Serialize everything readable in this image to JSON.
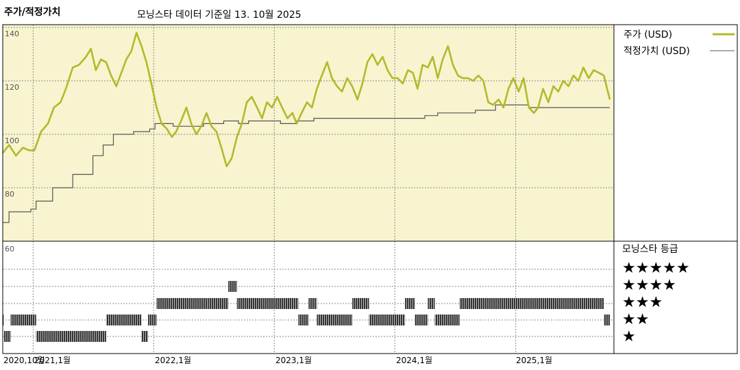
{
  "header": {
    "panel_title": "주가/적정가치",
    "subtitle": "모닝스타 데이터 기준일 13. 10월 2025"
  },
  "legend": {
    "price_label": "주가 (USD)",
    "fair_value_label": "적정가치 (USD)",
    "rating_title": "모닝스타 등급",
    "stars": [
      "★★★★★",
      "★★★★",
      "★★★",
      "★★",
      "★"
    ]
  },
  "colors": {
    "price_line": "#b5b82a",
    "fair_value_line": "#555555",
    "upper_bg": "#f7f4cf",
    "rating_bar": "#333333",
    "grid": "#888888"
  },
  "chart_data": [
    {
      "type": "line",
      "y_ticks": [
        "140",
        "120",
        "100",
        "80",
        "60"
      ],
      "ylim": [
        60,
        142
      ],
      "x_ticks": [
        "2020,10월",
        "2021,1월",
        "2022,1월",
        "2023,1월",
        "2024,1월",
        "2025,1월"
      ],
      "xlim": [
        "2020-10-01",
        "2025-10-13"
      ],
      "series": [
        {
          "name": "주가 (USD)",
          "points": [
            [
              "2020-10-01",
              93
            ],
            [
              "2020-10-20",
              96
            ],
            [
              "2020-11-10",
              92
            ],
            [
              "2020-12-01",
              95
            ],
            [
              "2020-12-20",
              94
            ],
            [
              "2021-01-05",
              94
            ],
            [
              "2021-01-25",
              101
            ],
            [
              "2021-02-15",
              104
            ],
            [
              "2021-03-05",
              110
            ],
            [
              "2021-03-25",
              112
            ],
            [
              "2021-04-10",
              117
            ],
            [
              "2021-05-01",
              125
            ],
            [
              "2021-05-20",
              126
            ],
            [
              "2021-06-10",
              129
            ],
            [
              "2021-06-25",
              132
            ],
            [
              "2021-07-10",
              124
            ],
            [
              "2021-07-25",
              128
            ],
            [
              "2021-08-10",
              127
            ],
            [
              "2021-08-25",
              122
            ],
            [
              "2021-09-10",
              118
            ],
            [
              "2021-09-25",
              123
            ],
            [
              "2021-10-10",
              128
            ],
            [
              "2021-10-25",
              131
            ],
            [
              "2021-11-10",
              138
            ],
            [
              "2021-11-25",
              133
            ],
            [
              "2021-12-10",
              127
            ],
            [
              "2021-12-25",
              119
            ],
            [
              "2022-01-10",
              110
            ],
            [
              "2022-01-25",
              104
            ],
            [
              "2022-02-10",
              102
            ],
            [
              "2022-02-25",
              99
            ],
            [
              "2022-03-10",
              101
            ],
            [
              "2022-03-25",
              105
            ],
            [
              "2022-04-10",
              110
            ],
            [
              "2022-04-25",
              104
            ],
            [
              "2022-05-10",
              100
            ],
            [
              "2022-05-25",
              103
            ],
            [
              "2022-06-10",
              108
            ],
            [
              "2022-06-25",
              103
            ],
            [
              "2022-07-10",
              101
            ],
            [
              "2022-07-25",
              95
            ],
            [
              "2022-08-10",
              88
            ],
            [
              "2022-08-25",
              91
            ],
            [
              "2022-09-10",
              99
            ],
            [
              "2022-09-25",
              104
            ],
            [
              "2022-10-10",
              112
            ],
            [
              "2022-10-25",
              114
            ],
            [
              "2022-11-10",
              110
            ],
            [
              "2022-11-25",
              106
            ],
            [
              "2022-12-10",
              112
            ],
            [
              "2022-12-25",
              110
            ],
            [
              "2023-01-10",
              114
            ],
            [
              "2023-01-25",
              110
            ],
            [
              "2023-02-10",
              106
            ],
            [
              "2023-02-25",
              108
            ],
            [
              "2023-03-10",
              104
            ],
            [
              "2023-03-25",
              108
            ],
            [
              "2023-04-10",
              112
            ],
            [
              "2023-04-25",
              110
            ],
            [
              "2023-05-10",
              117
            ],
            [
              "2023-05-25",
              122
            ],
            [
              "2023-06-10",
              127
            ],
            [
              "2023-06-25",
              121
            ],
            [
              "2023-07-10",
              118
            ],
            [
              "2023-07-25",
              116
            ],
            [
              "2023-08-10",
              121
            ],
            [
              "2023-08-25",
              118
            ],
            [
              "2023-09-10",
              113
            ],
            [
              "2023-09-25",
              119
            ],
            [
              "2023-10-10",
              127
            ],
            [
              "2023-10-25",
              130
            ],
            [
              "2023-11-10",
              126
            ],
            [
              "2023-11-25",
              129
            ],
            [
              "2023-12-10",
              124
            ],
            [
              "2023-12-25",
              121
            ],
            [
              "2024-01-10",
              121
            ],
            [
              "2024-01-25",
              119
            ],
            [
              "2024-02-10",
              124
            ],
            [
              "2024-02-25",
              123
            ],
            [
              "2024-03-10",
              117
            ],
            [
              "2024-03-25",
              126
            ],
            [
              "2024-04-10",
              125
            ],
            [
              "2024-04-25",
              129
            ],
            [
              "2024-05-10",
              121
            ],
            [
              "2024-05-25",
              128
            ],
            [
              "2024-06-10",
              133
            ],
            [
              "2024-06-25",
              126
            ],
            [
              "2024-07-10",
              122
            ],
            [
              "2024-07-25",
              121
            ],
            [
              "2024-08-10",
              121
            ],
            [
              "2024-08-25",
              120
            ],
            [
              "2024-09-10",
              122
            ],
            [
              "2024-09-25",
              120
            ],
            [
              "2024-10-10",
              112
            ],
            [
              "2024-10-25",
              111
            ],
            [
              "2024-11-10",
              113
            ],
            [
              "2024-11-25",
              110
            ],
            [
              "2024-12-10",
              117
            ],
            [
              "2024-12-25",
              121
            ],
            [
              "2025-01-10",
              116
            ],
            [
              "2025-01-25",
              121
            ],
            [
              "2025-02-10",
              110
            ],
            [
              "2025-02-25",
              108
            ],
            [
              "2025-03-10",
              110
            ],
            [
              "2025-03-25",
              117
            ],
            [
              "2025-04-10",
              112
            ],
            [
              "2025-04-25",
              118
            ],
            [
              "2025-05-10",
              116
            ],
            [
              "2025-05-25",
              120
            ],
            [
              "2025-06-10",
              118
            ],
            [
              "2025-06-25",
              122
            ],
            [
              "2025-07-10",
              120
            ],
            [
              "2025-07-25",
              125
            ],
            [
              "2025-08-10",
              121
            ],
            [
              "2025-08-25",
              124
            ],
            [
              "2025-09-10",
              123
            ],
            [
              "2025-09-25",
              122
            ],
            [
              "2025-10-13",
              113
            ]
          ]
        },
        {
          "name": "적정가치 (USD)",
          "points": [
            [
              "2020-10-01",
              67
            ],
            [
              "2020-10-20",
              71
            ],
            [
              "2020-12-25",
              72
            ],
            [
              "2021-01-10",
              75
            ],
            [
              "2021-03-01",
              80
            ],
            [
              "2021-05-01",
              85
            ],
            [
              "2021-07-01",
              92
            ],
            [
              "2021-08-01",
              96
            ],
            [
              "2021-09-01",
              100
            ],
            [
              "2021-11-01",
              101
            ],
            [
              "2021-12-20",
              102
            ],
            [
              "2022-01-05",
              104
            ],
            [
              "2022-03-01",
              103
            ],
            [
              "2022-06-01",
              104
            ],
            [
              "2022-08-01",
              105
            ],
            [
              "2022-09-15",
              104
            ],
            [
              "2022-10-15",
              105
            ],
            [
              "2023-01-20",
              104
            ],
            [
              "2023-03-10",
              105
            ],
            [
              "2023-05-01",
              106
            ],
            [
              "2023-10-01",
              106
            ],
            [
              "2024-04-01",
              107
            ],
            [
              "2024-05-10",
              108
            ],
            [
              "2024-07-01",
              108
            ],
            [
              "2024-09-01",
              109
            ],
            [
              "2024-11-01",
              111
            ],
            [
              "2025-01-15",
              111
            ],
            [
              "2025-02-10",
              110
            ],
            [
              "2025-04-01",
              110
            ],
            [
              "2025-10-13",
              110
            ]
          ]
        }
      ]
    },
    {
      "type": "heatmap",
      "title": "모닝스타 등급",
      "rating_periods": [
        [
          "2020-10-01",
          "2020-10-05",
          2
        ],
        [
          "2020-10-05",
          "2020-10-25",
          1
        ],
        [
          "2020-10-25",
          "2021-01-10",
          2
        ],
        [
          "2021-01-10",
          "2021-08-10",
          1
        ],
        [
          "2021-08-10",
          "2021-11-25",
          2
        ],
        [
          "2021-11-25",
          "2021-12-15",
          1
        ],
        [
          "2021-12-15",
          "2022-01-10",
          2
        ],
        [
          "2022-01-10",
          "2022-02-15",
          3
        ],
        [
          "2022-02-15",
          "2022-06-15",
          3
        ],
        [
          "2022-06-15",
          "2022-08-15",
          3
        ],
        [
          "2022-08-15",
          "2022-09-10",
          4
        ],
        [
          "2022-09-10",
          "2022-10-15",
          3
        ],
        [
          "2022-10-15",
          "2023-03-15",
          3
        ],
        [
          "2023-03-15",
          "2023-04-15",
          2
        ],
        [
          "2023-04-15",
          "2023-05-10",
          3
        ],
        [
          "2023-05-10",
          "2023-08-15",
          2
        ],
        [
          "2023-08-15",
          "2023-08-25",
          2
        ],
        [
          "2023-08-25",
          "2023-09-15",
          3
        ],
        [
          "2023-09-15",
          "2023-10-15",
          3
        ],
        [
          "2023-10-15",
          "2024-02-01",
          2
        ],
        [
          "2024-02-01",
          "2024-03-01",
          3
        ],
        [
          "2024-03-01",
          "2024-04-10",
          2
        ],
        [
          "2024-04-10",
          "2024-05-01",
          3
        ],
        [
          "2024-05-01",
          "2024-06-01",
          2
        ],
        [
          "2024-06-01",
          "2024-07-15",
          2
        ],
        [
          "2024-07-15",
          "2025-09-25",
          3
        ],
        [
          "2025-09-25",
          "2025-10-13",
          2
        ]
      ]
    }
  ]
}
